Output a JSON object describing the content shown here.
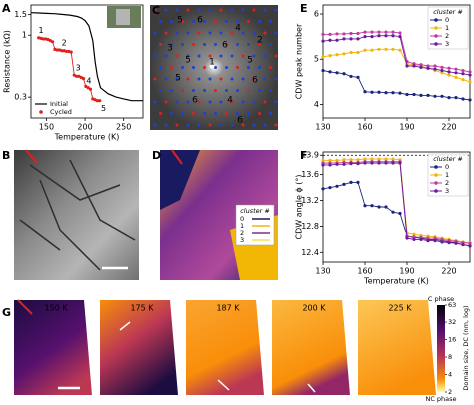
{
  "panel_labels": [
    "A",
    "B",
    "C",
    "D",
    "E",
    "F",
    "G"
  ],
  "chart_data": [
    {
      "type": "line",
      "ylabel": "Resistance (kΩ)",
      "xlabel": "Temperature (K)",
      "xlim": [
        130,
        275
      ],
      "ylim": [
        0.2,
        1.8
      ],
      "log_y": true,
      "xticks": [
        150,
        200,
        250
      ],
      "yticks": [
        0.3,
        1,
        1.5
      ],
      "legend": "lower left",
      "series": [
        {
          "name": "Initial",
          "color": "#000000",
          "marker": "none",
          "x": [
            130,
            140,
            150,
            160,
            170,
            180,
            190,
            195,
            200,
            205,
            210,
            213,
            216,
            220,
            230,
            240,
            250,
            260,
            270,
            275
          ],
          "values": [
            1.55,
            1.54,
            1.53,
            1.52,
            1.5,
            1.48,
            1.44,
            1.4,
            1.33,
            1.2,
            0.9,
            0.6,
            0.45,
            0.36,
            0.32,
            0.3,
            0.29,
            0.28,
            0.28,
            0.28
          ]
        },
        {
          "name": "Cycled",
          "color": "#e0201b",
          "marker": "circle",
          "x": [
            140,
            143,
            146,
            149,
            152,
            155,
            158,
            161,
            164,
            167,
            170,
            173,
            176,
            179,
            182,
            186,
            189,
            192,
            195,
            198,
            201,
            204,
            207,
            210,
            213,
            216,
            219
          ],
          "values": [
            0.95,
            0.94,
            0.93,
            0.93,
            0.92,
            0.9,
            0.88,
            0.76,
            0.75,
            0.75,
            0.74,
            0.74,
            0.73,
            0.73,
            0.72,
            0.46,
            0.45,
            0.45,
            0.44,
            0.43,
            0.37,
            0.36,
            0.35,
            0.29,
            0.285,
            0.28,
            0.28
          ]
        }
      ],
      "annotations": [
        {
          "text": "1",
          "x": 143,
          "y": 1.1
        },
        {
          "text": "2",
          "x": 173,
          "y": 0.86
        },
        {
          "text": "3",
          "x": 191,
          "y": 0.53
        },
        {
          "text": "4",
          "x": 205,
          "y": 0.41
        },
        {
          "text": "5",
          "x": 224,
          "y": 0.24
        }
      ]
    },
    {
      "type": "line",
      "ylabel": "CDW peak number",
      "xlim": [
        130,
        235
      ],
      "ylim": [
        3.7,
        6.2
      ],
      "xticks": [
        130,
        160,
        190,
        220
      ],
      "yticks": [
        4,
        5,
        6
      ],
      "legend": "upper right",
      "legend_title": "cluster #",
      "x": [
        130,
        135,
        140,
        145,
        150,
        155,
        160,
        165,
        170,
        175,
        180,
        185,
        190,
        195,
        200,
        205,
        210,
        215,
        220,
        225,
        230,
        235
      ],
      "series": [
        {
          "name": "0",
          "color": "#1a237e",
          "marker": "circle",
          "values": [
            4.75,
            4.72,
            4.7,
            4.68,
            4.62,
            4.6,
            4.28,
            4.27,
            4.27,
            4.26,
            4.26,
            4.25,
            4.22,
            4.22,
            4.2,
            4.2,
            4.18,
            4.18,
            4.15,
            4.15,
            4.12,
            4.1
          ]
        },
        {
          "name": "1",
          "color": "#f2b705",
          "marker": "circle",
          "values": [
            5.05,
            5.08,
            5.1,
            5.12,
            5.15,
            5.15,
            5.2,
            5.2,
            5.22,
            5.22,
            5.22,
            5.2,
            4.9,
            4.88,
            4.85,
            4.8,
            4.75,
            4.7,
            4.65,
            4.6,
            4.55,
            4.5
          ]
        },
        {
          "name": "2",
          "color": "#c03aa0",
          "marker": "circle",
          "values": [
            5.55,
            5.55,
            5.56,
            5.56,
            5.57,
            5.57,
            5.6,
            5.6,
            5.6,
            5.6,
            5.6,
            5.58,
            4.95,
            4.9,
            4.88,
            4.85,
            4.85,
            4.82,
            4.8,
            4.78,
            4.75,
            4.72
          ]
        },
        {
          "name": "3",
          "color": "#6a1b9a",
          "marker": "circle",
          "values": [
            5.4,
            5.42,
            5.42,
            5.45,
            5.45,
            5.45,
            5.5,
            5.5,
            5.52,
            5.52,
            5.52,
            5.5,
            4.85,
            4.85,
            4.82,
            4.8,
            4.78,
            4.75,
            4.72,
            4.7,
            4.68,
            4.65
          ]
        }
      ]
    },
    {
      "type": "line",
      "ylabel": "CDW angle ϕ (°)",
      "xlabel": "Temperature (K)",
      "xlim": [
        130,
        235
      ],
      "ylim": [
        12.25,
        13.95
      ],
      "xticks": [
        130,
        160,
        190,
        220
      ],
      "yticks": [
        12.4,
        12.8,
        13.2,
        13.6,
        13.9
      ],
      "reference_line": 13.9,
      "legend": "upper right",
      "legend_title": "cluster #",
      "x": [
        130,
        135,
        140,
        145,
        150,
        155,
        160,
        165,
        170,
        175,
        180,
        185,
        190,
        195,
        200,
        205,
        210,
        215,
        220,
        225,
        230,
        235
      ],
      "series": [
        {
          "name": "0",
          "color": "#1a237e",
          "marker": "circle",
          "values": [
            13.38,
            13.4,
            13.42,
            13.45,
            13.48,
            13.48,
            13.12,
            13.12,
            13.1,
            13.1,
            13.02,
            13.0,
            12.65,
            12.63,
            12.62,
            12.6,
            12.6,
            12.58,
            12.56,
            12.55,
            12.52,
            12.5
          ]
        },
        {
          "name": "1",
          "color": "#f2b705",
          "marker": "circle",
          "values": [
            13.82,
            13.82,
            13.82,
            13.83,
            13.83,
            13.83,
            13.84,
            13.84,
            13.84,
            13.84,
            13.84,
            13.83,
            12.7,
            12.68,
            12.66,
            12.65,
            12.64,
            12.62,
            12.6,
            12.58,
            12.56,
            12.55
          ]
        },
        {
          "name": "2",
          "color": "#c03aa0",
          "marker": "circle",
          "values": [
            13.78,
            13.78,
            13.78,
            13.79,
            13.79,
            13.79,
            13.8,
            13.8,
            13.8,
            13.8,
            13.8,
            13.8,
            12.65,
            12.64,
            12.63,
            12.62,
            12.62,
            12.6,
            12.58,
            12.57,
            12.55,
            12.54
          ]
        },
        {
          "name": "3",
          "color": "#6a1b9a",
          "marker": "circle",
          "values": [
            13.75,
            13.75,
            13.76,
            13.76,
            13.77,
            13.77,
            13.78,
            13.78,
            13.78,
            13.78,
            13.78,
            13.78,
            12.62,
            12.6,
            12.6,
            12.58,
            12.58,
            12.56,
            12.55,
            12.54,
            12.52,
            12.5
          ]
        }
      ]
    }
  ],
  "image_c": {
    "labels": [
      "1",
      "5",
      "6",
      "4",
      "2",
      "3",
      "5",
      "6",
      "4",
      "6",
      "5",
      "6",
      "5",
      "6"
    ]
  },
  "image_d": {
    "legend_title": "cluster #",
    "legend": [
      "0",
      "1",
      "2",
      "3"
    ]
  },
  "image_g": {
    "temperatures": [
      "150 K",
      "175 K",
      "187 K",
      "200 K",
      "225 K"
    ],
    "colorbar": {
      "ticks": [
        63,
        32,
        16,
        8,
        4,
        2
      ],
      "lim": [
        2,
        63
      ],
      "log": true,
      "label": "Domain size, DC (nm, log)",
      "top": "C phase",
      "bottom": "NC phase"
    }
  }
}
